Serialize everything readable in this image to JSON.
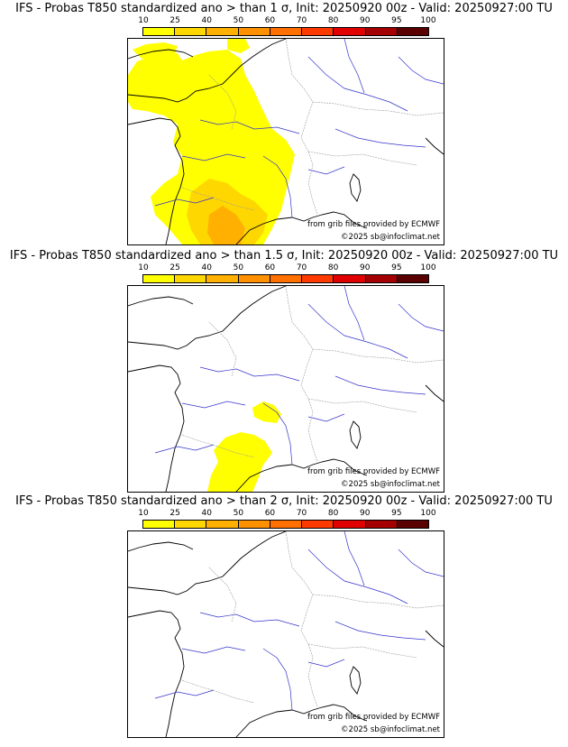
{
  "colorbar": {
    "ticks": [
      "10",
      "25",
      "40",
      "50",
      "60",
      "70",
      "80",
      "90",
      "95",
      "100"
    ],
    "colors": [
      "#ffff00",
      "#ffd700",
      "#ffb000",
      "#ff9000",
      "#ff7000",
      "#ff3a00",
      "#e00000",
      "#a50000",
      "#5a0000"
    ]
  },
  "map_style": {
    "coast_color": "#000000",
    "river_color": "#3333cc",
    "border_color": "#999999",
    "fill_low": "#ffff00",
    "fill_mid": "#ffd700",
    "fill_high": "#ffb000"
  },
  "panels": [
    {
      "title": "IFS - Probas T850  standardized ano > than 1 σ, Init: 20250920 00z - Valid: 20250927:00 TU",
      "credit": "from grib files provided by ECMWF",
      "copyright": "©2025 sb@infoclimat.net"
    },
    {
      "title": "IFS - Probas T850  standardized ano > than 1.5 σ, Init: 20250920 00z - Valid: 20250927:00 TU",
      "credit": "from grib files provided by ECMWF",
      "copyright": "©2025 sb@infoclimat.net"
    },
    {
      "title": "IFS - Probas T850  standardized ano > than 2 σ, Init: 20250920 00z - Valid: 20250927:00 TU",
      "credit": "from grib files provided by ECMWF",
      "copyright": "©2025 sb@infoclimat.net"
    }
  ]
}
